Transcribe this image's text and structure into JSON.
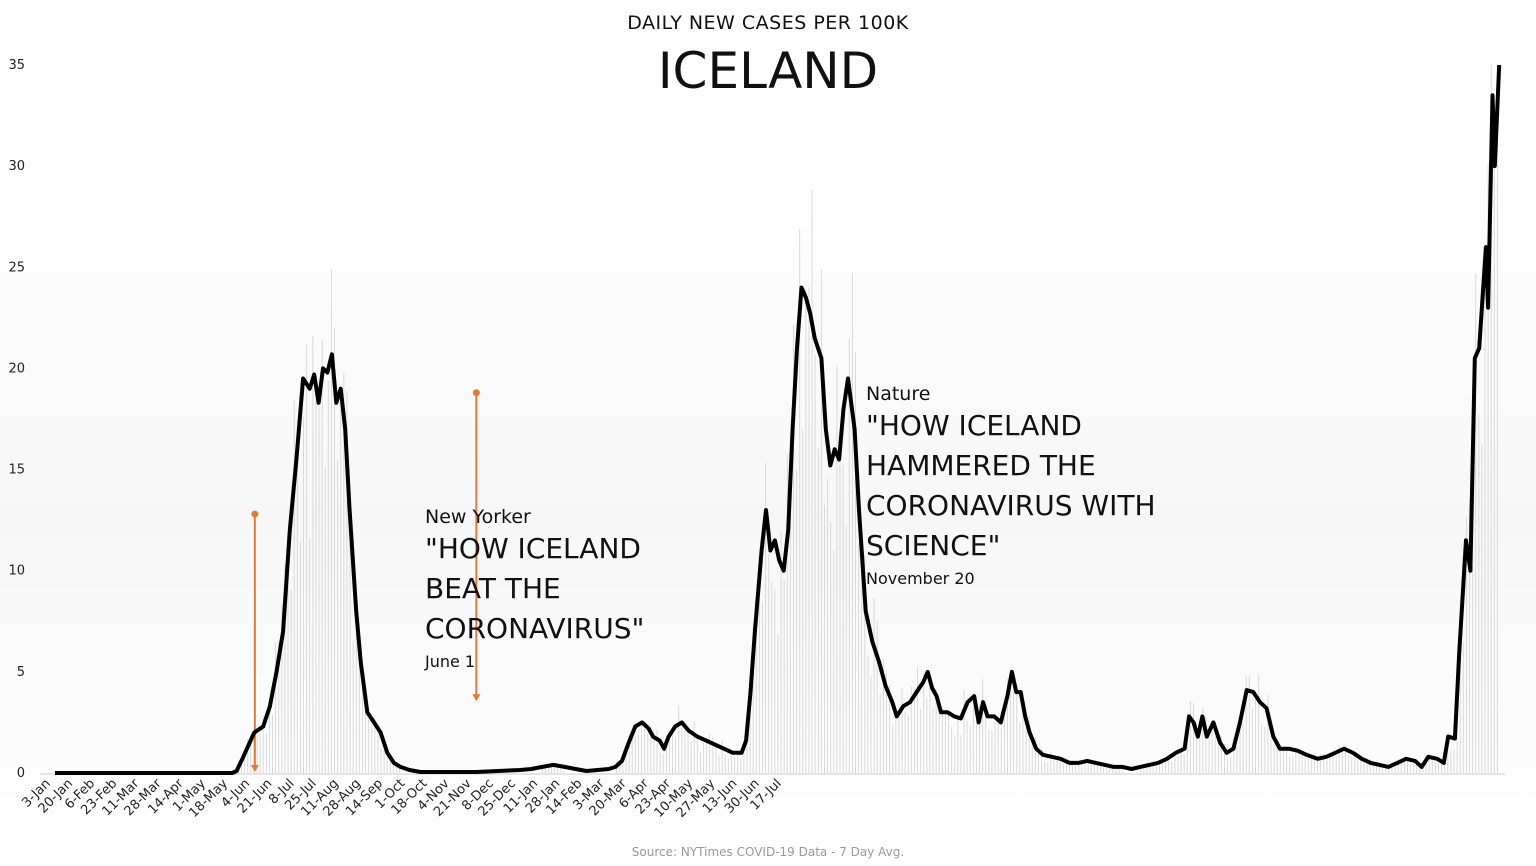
{
  "header": {
    "subtitle": "DAILY NEW CASES PER 100K",
    "title": "ICELAND"
  },
  "footer": {
    "source": "Source: NYTimes COVID-19 Data - 7 Day Avg."
  },
  "colors": {
    "line": "#000000",
    "annotation": "#e07b39",
    "daily_bars": "#d9d9d9"
  },
  "annotations": [
    {
      "publication": "New Yorker",
      "headline_lines": [
        "\"HOW ICELAND",
        "BEAT THE",
        "CORONAVIRUS\""
      ],
      "date": "June 1",
      "x_label": "4-Jun",
      "y_top": 12.8,
      "y_bottom": 0
    },
    {
      "publication": "Nature",
      "headline_lines": [
        "\"HOW ICELAND",
        "HAMMERED THE",
        "CORONAVIRUS WITH",
        "SCIENCE\""
      ],
      "date": "November 20",
      "x_label": "21-Nov",
      "y_top": 18.8,
      "y_bottom": 3.5
    }
  ],
  "chart_data": {
    "type": "line",
    "title": "ICELAND",
    "subtitle": "DAILY NEW CASES PER 100K",
    "xlabel": "",
    "ylabel": "",
    "ylim": [
      0,
      35
    ],
    "yticks": [
      0,
      5,
      10,
      15,
      20,
      25,
      30,
      35
    ],
    "grid": false,
    "legend": "none",
    "x_ticks": [
      "3-Jan",
      "20-Jan",
      "6-Feb",
      "23-Feb",
      "11-Mar",
      "28-Mar",
      "14-Apr",
      "1-May",
      "18-May",
      "4-Jun",
      "21-Jun",
      "8-Jul",
      "25-Jul",
      "11-Aug",
      "28-Aug",
      "14-Sep",
      "1-Oct",
      "18-Oct",
      "4-Nov",
      "21-Nov",
      "8-Dec",
      "25-Dec",
      "11-Jan",
      "28-Jan",
      "14-Feb",
      "3-Mar",
      "20-Mar",
      "6-Apr",
      "23-Apr",
      "10-May",
      "27-May",
      "13-Jun",
      "30-Jun",
      "17-Jul"
    ],
    "series": [
      {
        "values": [
          [
            0,
            0
          ],
          [
            4,
            0
          ],
          [
            8,
            0
          ],
          [
            8.2,
            0.1
          ],
          [
            8.5,
            0.8
          ],
          [
            9,
            2
          ],
          [
            9.4,
            2.3
          ],
          [
            9.7,
            3.3
          ],
          [
            10,
            5
          ],
          [
            10.3,
            7
          ],
          [
            10.6,
            12
          ],
          [
            10.9,
            15.5
          ],
          [
            11.2,
            19.5
          ],
          [
            11.5,
            19
          ],
          [
            11.7,
            19.7
          ],
          [
            11.9,
            18.3
          ],
          [
            12.1,
            20
          ],
          [
            12.3,
            19.8
          ],
          [
            12.5,
            20.7
          ],
          [
            12.7,
            18.3
          ],
          [
            12.9,
            19
          ],
          [
            13.1,
            17
          ],
          [
            13.3,
            13
          ],
          [
            13.6,
            8
          ],
          [
            13.8,
            5.5
          ],
          [
            14.1,
            3
          ],
          [
            14.4,
            2.5
          ],
          [
            14.7,
            2
          ],
          [
            15,
            1
          ],
          [
            15.3,
            0.5
          ],
          [
            15.6,
            0.3
          ],
          [
            16,
            0.15
          ],
          [
            16.5,
            0.05
          ],
          [
            17,
            0.05
          ],
          [
            18,
            0.05
          ],
          [
            19,
            0.05
          ],
          [
            20,
            0.1
          ],
          [
            21,
            0.15
          ],
          [
            21.5,
            0.2
          ],
          [
            22,
            0.3
          ],
          [
            22.5,
            0.4
          ],
          [
            23,
            0.3
          ],
          [
            23.5,
            0.2
          ],
          [
            24,
            0.1
          ],
          [
            25,
            0.2
          ],
          [
            25.3,
            0.3
          ],
          [
            25.6,
            0.6
          ],
          [
            25.9,
            1.5
          ],
          [
            26.2,
            2.3
          ],
          [
            26.5,
            2.5
          ],
          [
            26.8,
            2.2
          ],
          [
            27,
            1.8
          ],
          [
            27.3,
            1.6
          ],
          [
            27.5,
            1.2
          ],
          [
            27.7,
            1.8
          ],
          [
            28,
            2.3
          ],
          [
            28.3,
            2.5
          ],
          [
            28.6,
            2.1
          ],
          [
            29,
            1.8
          ],
          [
            29.4,
            1.6
          ],
          [
            29.8,
            1.4
          ],
          [
            30.2,
            1.2
          ],
          [
            30.6,
            1
          ],
          [
            31,
            1
          ],
          [
            31.2,
            1.6
          ],
          [
            31.4,
            4
          ],
          [
            31.6,
            7
          ],
          [
            31.9,
            11
          ],
          [
            32.1,
            13
          ],
          [
            32.3,
            11
          ],
          [
            32.5,
            11.5
          ],
          [
            32.7,
            10.5
          ],
          [
            32.9,
            10
          ],
          [
            33.1,
            12
          ],
          [
            33.3,
            17
          ],
          [
            33.5,
            21
          ],
          [
            33.7,
            24
          ],
          [
            33.9,
            23.5
          ],
          [
            34.1,
            22.7
          ],
          [
            34.3,
            21.5
          ],
          [
            34.6,
            20.5
          ],
          [
            34.8,
            17
          ],
          [
            35,
            15.2
          ],
          [
            35.2,
            16
          ],
          [
            35.4,
            15.5
          ],
          [
            35.6,
            18
          ],
          [
            35.8,
            19.5
          ],
          [
            36.1,
            17
          ],
          [
            36.3,
            13
          ],
          [
            36.6,
            8
          ],
          [
            36.9,
            6.5
          ],
          [
            37.2,
            5.5
          ],
          [
            37.5,
            4.3
          ],
          [
            37.8,
            3.5
          ],
          [
            38,
            2.8
          ],
          [
            38.3,
            3.3
          ],
          [
            38.6,
            3.5
          ],
          [
            38.9,
            4
          ],
          [
            39.2,
            4.5
          ],
          [
            39.4,
            5
          ],
          [
            39.6,
            4.2
          ],
          [
            39.8,
            3.8
          ],
          [
            40,
            3
          ],
          [
            40.3,
            3
          ],
          [
            40.6,
            2.8
          ],
          [
            40.9,
            2.7
          ],
          [
            41.2,
            3.5
          ],
          [
            41.5,
            3.8
          ],
          [
            41.7,
            2.5
          ],
          [
            41.9,
            3.5
          ],
          [
            42.1,
            2.8
          ],
          [
            42.4,
            2.8
          ],
          [
            42.7,
            2.5
          ],
          [
            43,
            3.8
          ],
          [
            43.2,
            5
          ],
          [
            43.4,
            4
          ],
          [
            43.6,
            4
          ],
          [
            43.8,
            2.8
          ],
          [
            44,
            2
          ],
          [
            44.3,
            1.2
          ],
          [
            44.6,
            0.9
          ],
          [
            45,
            0.8
          ],
          [
            45.4,
            0.7
          ],
          [
            45.8,
            0.5
          ],
          [
            46.2,
            0.5
          ],
          [
            46.6,
            0.6
          ],
          [
            47,
            0.5
          ],
          [
            47.4,
            0.4
          ],
          [
            47.8,
            0.3
          ],
          [
            48.2,
            0.3
          ],
          [
            48.6,
            0.2
          ],
          [
            49,
            0.3
          ],
          [
            49.4,
            0.4
          ],
          [
            49.8,
            0.5
          ],
          [
            50.2,
            0.7
          ],
          [
            50.6,
            1
          ],
          [
            51,
            1.2
          ],
          [
            51.2,
            2.8
          ],
          [
            51.4,
            2.5
          ],
          [
            51.6,
            1.8
          ],
          [
            51.8,
            2.8
          ],
          [
            52,
            1.8
          ],
          [
            52.3,
            2.5
          ],
          [
            52.6,
            1.5
          ],
          [
            52.9,
            1
          ],
          [
            53.2,
            1.2
          ],
          [
            53.5,
            2.5
          ],
          [
            53.8,
            4.1
          ],
          [
            54.1,
            4
          ],
          [
            54.4,
            3.5
          ],
          [
            54.7,
            3.2
          ],
          [
            55,
            1.8
          ],
          [
            55.3,
            1.2
          ],
          [
            55.7,
            1.2
          ],
          [
            56.1,
            1.1
          ],
          [
            56.5,
            0.9
          ],
          [
            57,
            0.7
          ],
          [
            57.4,
            0.8
          ],
          [
            57.8,
            1
          ],
          [
            58.2,
            1.2
          ],
          [
            58.6,
            1
          ],
          [
            59,
            0.7
          ],
          [
            59.4,
            0.5
          ],
          [
            59.8,
            0.4
          ],
          [
            60.2,
            0.3
          ],
          [
            60.6,
            0.5
          ],
          [
            61,
            0.7
          ],
          [
            61.4,
            0.6
          ],
          [
            61.7,
            0.3
          ],
          [
            62,
            0.8
          ],
          [
            62.4,
            0.7
          ],
          [
            62.7,
            0.5
          ],
          [
            62.9,
            1.8
          ],
          [
            63.2,
            1.7
          ],
          [
            63.4,
            6
          ],
          [
            63.7,
            11.5
          ],
          [
            63.9,
            10
          ],
          [
            64.1,
            20.5
          ],
          [
            64.3,
            21
          ],
          [
            64.6,
            26
          ],
          [
            64.7,
            23
          ],
          [
            64.9,
            33.5
          ],
          [
            65,
            30
          ],
          [
            65.2,
            35
          ]
        ]
      }
    ]
  }
}
